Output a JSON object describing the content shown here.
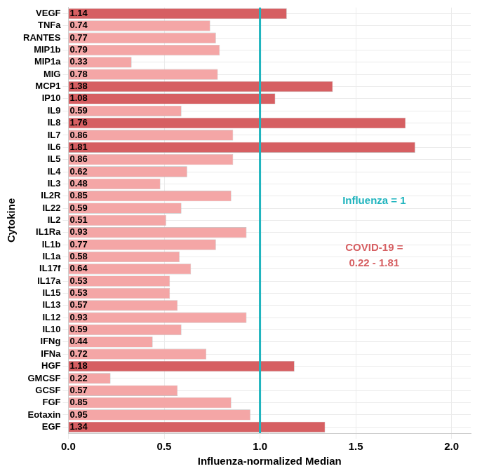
{
  "chart_data": {
    "type": "bar",
    "orientation": "horizontal",
    "x_label": "Influenza-normalized Median",
    "y_label": "Cytokine",
    "categories": [
      "VEGF",
      "TNFa",
      "RANTES",
      "MIP1b",
      "MIP1a",
      "MIG",
      "MCP1",
      "IP10",
      "IL9",
      "IL8",
      "IL7",
      "IL6",
      "IL5",
      "IL4",
      "IL3",
      "IL2R",
      "IL22",
      "IL2",
      "IL1Ra",
      "IL1b",
      "IL1a",
      "IL17f",
      "IL17a",
      "IL15",
      "IL13",
      "IL12",
      "IL10",
      "IFNg",
      "IFNa",
      "HGF",
      "GMCSF",
      "GCSF",
      "FGF",
      "Eotaxin",
      "EGF"
    ],
    "values": [
      1.14,
      0.74,
      0.77,
      0.79,
      0.33,
      0.78,
      1.38,
      1.08,
      0.59,
      1.76,
      0.86,
      1.81,
      0.86,
      0.62,
      0.48,
      0.85,
      0.59,
      0.51,
      0.93,
      0.77,
      0.58,
      0.64,
      0.53,
      0.53,
      0.57,
      0.93,
      0.59,
      0.44,
      0.72,
      1.18,
      0.22,
      0.57,
      0.85,
      0.95,
      1.34
    ],
    "colors": [
      "#d65f62",
      "#f4a6a6",
      "#f4a6a6",
      "#f4a6a6",
      "#f4a6a6",
      "#f4a6a6",
      "#d65f62",
      "#d65f62",
      "#f4a6a6",
      "#d65f62",
      "#f4a6a6",
      "#d65f62",
      "#f4a6a6",
      "#f4a6a6",
      "#f4a6a6",
      "#f4a6a6",
      "#f4a6a6",
      "#f4a6a6",
      "#f4a6a6",
      "#f4a6a6",
      "#f4a6a6",
      "#f4a6a6",
      "#f4a6a6",
      "#f4a6a6",
      "#f4a6a6",
      "#f4a6a6",
      "#f4a6a6",
      "#f4a6a6",
      "#f4a6a6",
      "#d65f62",
      "#f4a6a6",
      "#f4a6a6",
      "#f4a6a6",
      "#f4a6a6",
      "#d65f62"
    ],
    "xlim": [
      0,
      2.1
    ],
    "xticks": [
      {
        "value": 0,
        "label": "0.0"
      },
      0.5,
      {
        "value": 1,
        "label": "1.0"
      },
      1.5,
      {
        "value": 2,
        "label": "2.0"
      }
    ],
    "grid": true,
    "data_labels": true,
    "reference_line": {
      "value": 1,
      "color": "#20b4be"
    },
    "annotations": [
      {
        "lines": [
          "Influenza = 1"
        ],
        "color": "#20b4be"
      },
      {
        "lines": [
          "COVID-19 =",
          "0.22 - 1.81"
        ],
        "color": "#d65f62"
      }
    ]
  }
}
